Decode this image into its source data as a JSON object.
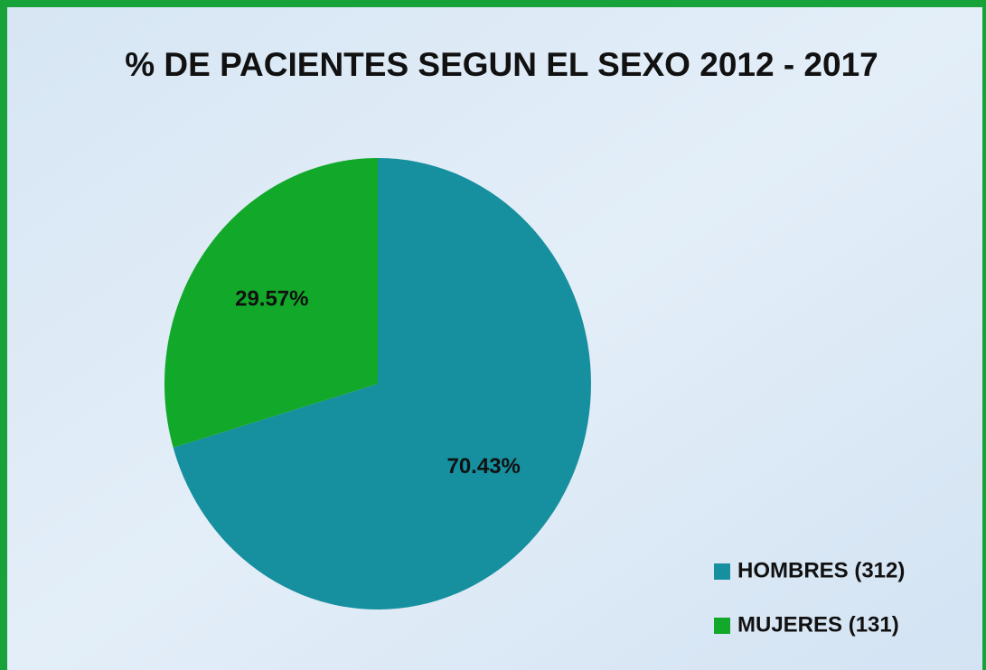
{
  "chart_data": {
    "type": "pie",
    "title": "% DE PACIENTES SEGUN EL SEXO 2012 - 2017",
    "categories": [
      "HOMBRES (312)",
      "MUJERES (131)"
    ],
    "values": [
      70.43,
      29.57
    ],
    "value_labels": [
      "70.43%",
      "29.57%"
    ],
    "colors": [
      "#168f9e",
      "#12a82a"
    ],
    "legend": "bottom-right"
  }
}
